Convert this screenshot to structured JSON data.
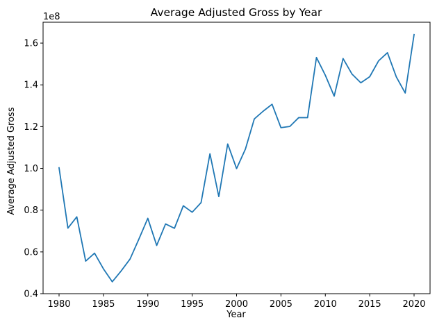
{
  "chart_data": {
    "type": "line",
    "title": "Average Adjusted Gross by Year",
    "xlabel": "Year",
    "ylabel": "Average Adjusted Gross",
    "y_offset_label": "1e8",
    "y_scale": 100000000,
    "xlim": [
      1978.2,
      2021.8
    ],
    "ylim": [
      0.4,
      1.7
    ],
    "x_ticks": [
      1980,
      1985,
      1990,
      1995,
      2000,
      2005,
      2010,
      2015,
      2020
    ],
    "x_tick_labels": [
      "1980",
      "1985",
      "1990",
      "1995",
      "2000",
      "2005",
      "2010",
      "2015",
      "2020"
    ],
    "y_ticks": [
      0.4,
      0.6,
      0.8,
      1.0,
      1.2,
      1.4,
      1.6
    ],
    "y_tick_labels": [
      "0.4",
      "0.6",
      "0.8",
      "1.0",
      "1.2",
      "1.4",
      "1.6"
    ],
    "grid": false,
    "legend": "none",
    "line_color": "#1f77b4",
    "series": [
      {
        "x": [
          1980,
          1981,
          1982,
          1983,
          1984,
          1985,
          1986,
          1987,
          1988,
          1989,
          1990,
          1991,
          1992,
          1993,
          1994,
          1995,
          1996,
          1997,
          1998,
          1999,
          2000,
          2001,
          2002,
          2003,
          2004,
          2005,
          2006,
          2007,
          2008,
          2009,
          2010,
          2011,
          2012,
          2013,
          2014,
          2015,
          2016,
          2017,
          2018,
          2019,
          2020
        ],
        "values": [
          1.003,
          0.714,
          0.768,
          0.556,
          0.594,
          0.519,
          0.457,
          0.509,
          0.566,
          0.662,
          0.761,
          0.631,
          0.734,
          0.713,
          0.821,
          0.79,
          0.836,
          1.07,
          0.865,
          1.117,
          0.999,
          1.093,
          1.237,
          1.274,
          1.307,
          1.195,
          1.201,
          1.243,
          1.243,
          1.531,
          1.446,
          1.346,
          1.526,
          1.452,
          1.41,
          1.439,
          1.515,
          1.554,
          1.438,
          1.361,
          1.641
        ]
      }
    ]
  }
}
